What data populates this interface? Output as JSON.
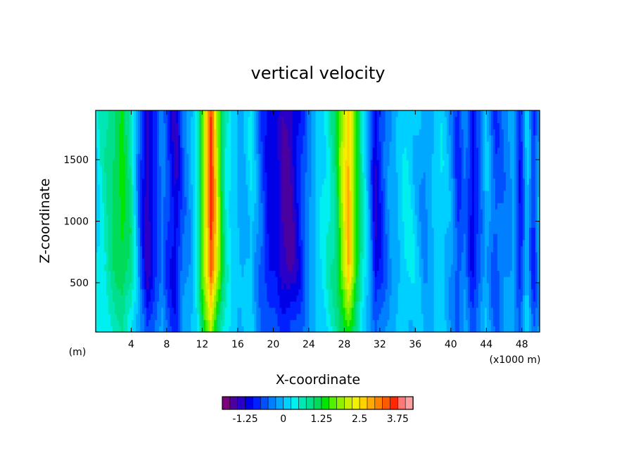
{
  "chart_data": {
    "type": "heatmap",
    "title": "vertical velocity",
    "xlabel": "X-coordinate",
    "ylabel": "Z-coordinate",
    "x_unit_left": "(m)",
    "x_unit_right": "(x1000 m)",
    "xlim": [
      0,
      50
    ],
    "ylim": [
      100,
      1900
    ],
    "x_ticks": [
      "4",
      "8",
      "12",
      "16",
      "20",
      "24",
      "28",
      "32",
      "36",
      "40",
      "44",
      "48"
    ],
    "y_ticks": [
      "500",
      "1000",
      "1500"
    ],
    "colorbar": {
      "tick_labels": [
        "-1.25",
        "0",
        "1.25",
        "2.5",
        "3.75"
      ],
      "levels": [
        -2.0,
        -1.75,
        -1.5,
        -1.25,
        -1.0,
        -0.75,
        -0.5,
        -0.25,
        0.0,
        0.25,
        0.5,
        0.75,
        1.0,
        1.25,
        1.5,
        1.75,
        2.0,
        2.25,
        2.5,
        2.75,
        3.0,
        3.25,
        3.5,
        3.75,
        4.0
      ],
      "colors": [
        "#7f007f",
        "#4b00a0",
        "#2a00c8",
        "#0000e6",
        "#0020ff",
        "#0050ff",
        "#0080ff",
        "#00a8ff",
        "#00d0ff",
        "#00f0f0",
        "#00e6b4",
        "#00e08c",
        "#00dc5a",
        "#00e600",
        "#50f000",
        "#90f000",
        "#c8f000",
        "#f0f000",
        "#ffd200",
        "#ffaa00",
        "#ff8200",
        "#ff5a00",
        "#ff2800",
        "#ff7878",
        "#ffa0a0"
      ]
    },
    "x_profile": {
      "x": [
        0,
        1,
        2,
        3,
        4,
        5,
        5.8,
        6.6,
        7.5,
        8.3,
        9,
        9.8,
        10.6,
        11.4,
        12.2,
        13,
        13.8,
        14.6,
        15.5,
        16.5,
        17.5,
        18.5,
        19.5,
        20.3,
        21,
        21.7,
        22.4,
        23.2,
        24,
        25,
        26,
        27,
        27.8,
        28.5,
        29.2,
        30,
        30.8,
        31.5,
        32.2,
        33,
        34,
        35,
        36,
        37,
        38,
        39,
        40,
        40.8,
        41.6,
        42.4,
        43.2,
        44,
        45,
        46,
        47,
        47.8,
        48.6,
        49.3,
        50
      ],
      "w": [
        0.2,
        0.6,
        1.0,
        1.3,
        0.8,
        -0.6,
        -1.4,
        -0.9,
        -0.4,
        -0.9,
        -1.3,
        -0.5,
        -0.2,
        0.4,
        2.0,
        3.6,
        1.9,
        0.6,
        0.1,
        -0.1,
        0.2,
        -0.5,
        -1.1,
        -1.0,
        -1.5,
        -1.6,
        -1.3,
        -0.8,
        -0.3,
        0.1,
        0.4,
        0.9,
        2.0,
        2.8,
        1.6,
        0.6,
        -0.2,
        -1.2,
        -0.8,
        -0.3,
        0.0,
        0.3,
        0.1,
        -0.3,
        0.0,
        0.2,
        -0.2,
        -0.8,
        -0.4,
        -1.1,
        -0.6,
        0.0,
        -0.7,
        -0.4,
        -0.2,
        -1.0,
        0.1,
        -0.9,
        0.0
      ]
    }
  }
}
